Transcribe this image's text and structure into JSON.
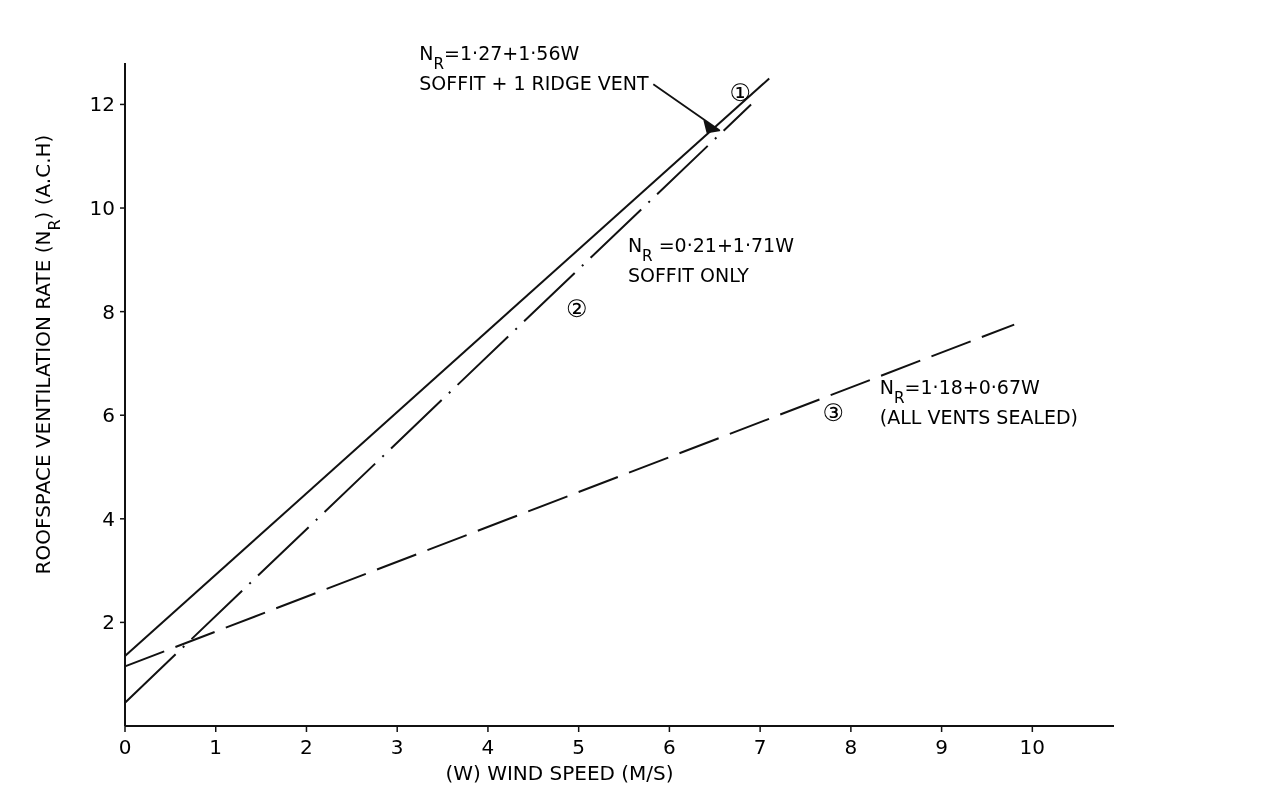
{
  "chart_data": {
    "type": "line",
    "xlabel": "(W) WIND SPEED (M/S)",
    "ylabel": "ROOFSPACE VENTILATION RATE (N$_{R}$) (A.C.H)",
    "xlim": [
      0,
      10.9
    ],
    "ylim": [
      0,
      12.8
    ],
    "xticks": [
      0,
      1,
      2,
      3,
      4,
      5,
      6,
      7,
      8,
      9,
      10
    ],
    "yticks": [
      2,
      4,
      6,
      8,
      10,
      12
    ],
    "grid": false,
    "marker": "none",
    "series": [
      {
        "color": "#111111",
        "line_style": "solid",
        "x": [
          0,
          7.1
        ],
        "values": [
          1.35,
          12.5
        ]
      },
      {
        "color": "#111111",
        "line_style": "dashed",
        "x": [
          0,
          6.9
        ],
        "values": [
          0.45,
          12.0
        ]
      },
      {
        "color": "#111111",
        "line_style": "dashed",
        "x": [
          0,
          9.8
        ],
        "values": [
          1.15,
          7.75
        ]
      }
    ],
    "annotations": [
      {
        "text": "①",
        "x": 6.75,
        "y": 11.8
      },
      {
        "text": "N$_{R}$=1·27+1·56W\nSOFFIT + 1 RIDGE VENT",
        "x": 6.55,
        "y": 11.5
      },
      {
        "text": "②",
        "x": 4.75,
        "y": 8.33
      },
      {
        "text": "N$_{R}$ =0·21+1·71W\nSOFFIT ONLY",
        "x": 5.3,
        "y": 9.3
      },
      {
        "text": "③",
        "x": 7.6,
        "y": 6.27
      },
      {
        "text": "N$_{R}$=1·18+0·67W\n(ALL VENTS SEALED)",
        "x": 7.9,
        "y": 6.45
      }
    ]
  }
}
